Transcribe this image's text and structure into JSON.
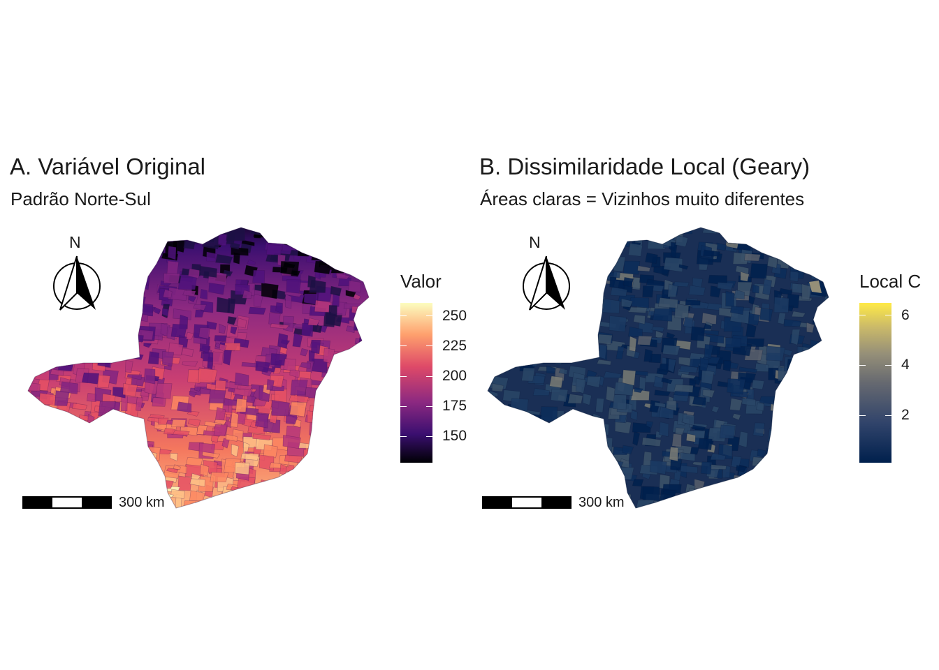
{
  "panels": [
    {
      "title": "A. Variável Original",
      "subtitle": "Padrão Norte-Sul",
      "legend": {
        "title": "Valor",
        "ticks": [
          "250",
          "225",
          "200",
          "175",
          "150"
        ],
        "tick_values": [
          250,
          225,
          200,
          175,
          150
        ],
        "range": [
          128,
          261
        ],
        "palette": [
          "#000004",
          "#3b0f70",
          "#8c2981",
          "#de4968",
          "#fe9f6d",
          "#fcfdbf"
        ]
      },
      "north_arrow": "N",
      "scale_bar": "300 km"
    },
    {
      "title": "B. Dissimilaridade Local (Geary)",
      "subtitle": "Áreas claras = Vizinhos muito diferentes",
      "legend": {
        "title": "Local C",
        "ticks": [
          "6",
          "4",
          "2"
        ],
        "tick_values": [
          6,
          4,
          2
        ],
        "range": [
          0.1,
          6.5
        ],
        "palette": [
          "#00204d",
          "#31446b",
          "#666970",
          "#958f78",
          "#cbba69",
          "#ffea46"
        ]
      },
      "north_arrow": "N",
      "scale_bar": "300 km"
    }
  ]
}
